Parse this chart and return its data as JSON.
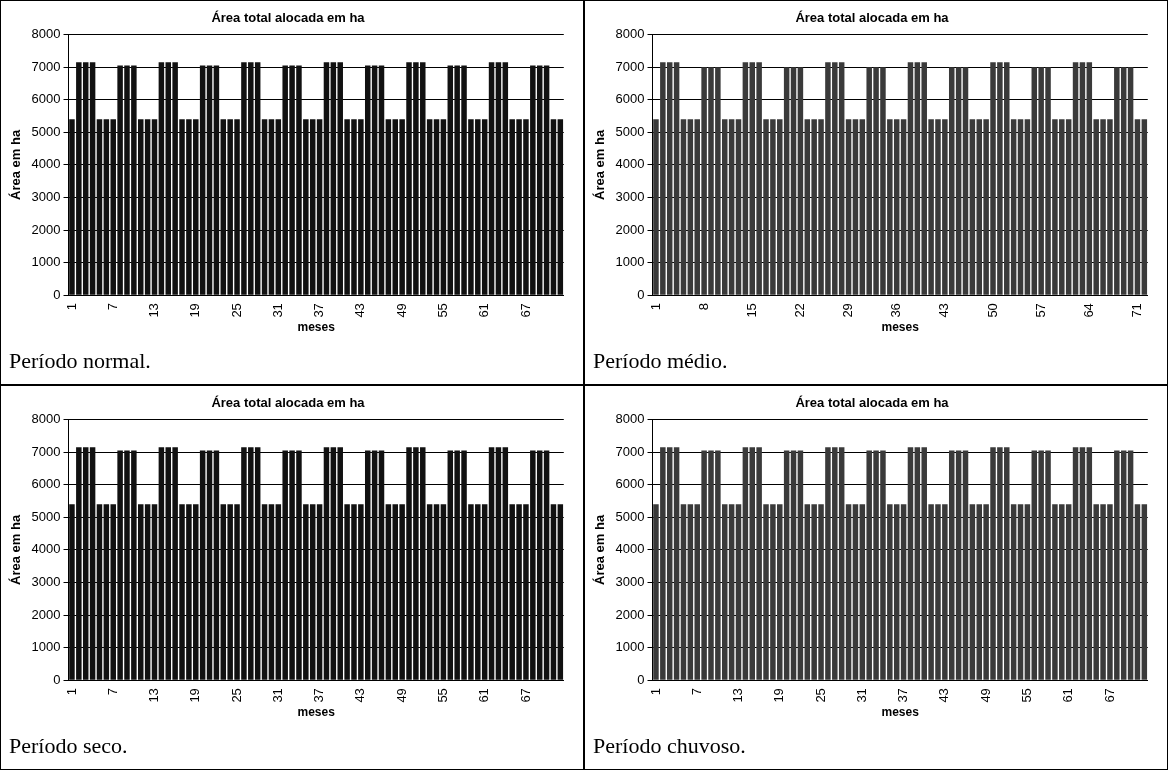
{
  "chart_data": [
    {
      "type": "bar",
      "title": "Área total alocada em ha",
      "xlabel": "meses",
      "ylabel": "Área em ha",
      "categories": [
        "1",
        null,
        null,
        null,
        null,
        null,
        "7",
        null,
        null,
        null,
        null,
        null,
        "13",
        null,
        null,
        null,
        null,
        null,
        "19",
        null,
        null,
        null,
        null,
        null,
        "25",
        null,
        null,
        null,
        null,
        null,
        "31",
        null,
        null,
        null,
        null,
        null,
        "37",
        null,
        null,
        null,
        null,
        null,
        "43",
        null,
        null,
        null,
        null,
        null,
        "49",
        null,
        null,
        null,
        null,
        null,
        "55",
        null,
        null,
        null,
        null,
        null,
        "61",
        null,
        null,
        null,
        null,
        null,
        "67",
        null,
        null,
        null,
        null,
        null
      ],
      "values": [
        5400,
        7150,
        7150,
        7150,
        5400,
        5400,
        5400,
        7050,
        7050,
        7050,
        5400,
        5400,
        5400,
        7150,
        7150,
        7150,
        5400,
        5400,
        5400,
        7050,
        7050,
        7050,
        5400,
        5400,
        5400,
        7150,
        7150,
        7150,
        5400,
        5400,
        5400,
        7050,
        7050,
        7050,
        5400,
        5400,
        5400,
        7150,
        7150,
        7150,
        5400,
        5400,
        5400,
        7050,
        7050,
        7050,
        5400,
        5400,
        5400,
        7150,
        7150,
        7150,
        5400,
        5400,
        5400,
        7050,
        7050,
        7050,
        5400,
        5400,
        5400,
        7150,
        7150,
        7150,
        5400,
        5400,
        5400,
        7050,
        7050,
        7050,
        5400,
        5400
      ],
      "color": "#111111",
      "ylim": [
        0,
        8000
      ],
      "yticks": [
        0,
        1000,
        2000,
        3000,
        4000,
        5000,
        6000,
        7000,
        8000
      ],
      "grid": "y",
      "annotations": [
        "Período normal."
      ]
    },
    {
      "type": "bar",
      "title": "Área total alocada em ha",
      "xlabel": "meses",
      "ylabel": "Área em ha",
      "categories": [
        "1",
        null,
        null,
        null,
        null,
        null,
        null,
        "8",
        null,
        null,
        null,
        null,
        null,
        null,
        "15",
        null,
        null,
        null,
        null,
        null,
        null,
        "22",
        null,
        null,
        null,
        null,
        null,
        null,
        "29",
        null,
        null,
        null,
        null,
        null,
        null,
        "36",
        null,
        null,
        null,
        null,
        null,
        null,
        "43",
        null,
        null,
        null,
        null,
        null,
        null,
        "50",
        null,
        null,
        null,
        null,
        null,
        null,
        "57",
        null,
        null,
        null,
        null,
        null,
        null,
        "64",
        null,
        null,
        null,
        null,
        null,
        null,
        "71",
        null
      ],
      "values": [
        5400,
        7150,
        7150,
        7150,
        5400,
        5400,
        5400,
        7000,
        7000,
        7000,
        5400,
        5400,
        5400,
        7150,
        7150,
        7150,
        5400,
        5400,
        5400,
        7000,
        7000,
        7000,
        5400,
        5400,
        5400,
        7150,
        7150,
        7150,
        5400,
        5400,
        5400,
        7000,
        7000,
        7000,
        5400,
        5400,
        5400,
        7150,
        7150,
        7150,
        5400,
        5400,
        5400,
        7000,
        7000,
        7000,
        5400,
        5400,
        5400,
        7150,
        7150,
        7150,
        5400,
        5400,
        5400,
        7000,
        7000,
        7000,
        5400,
        5400,
        5400,
        7150,
        7150,
        7150,
        5400,
        5400,
        5400,
        7000,
        7000,
        7000,
        5400,
        5400
      ],
      "color": "#3a3a3a",
      "ylim": [
        0,
        8000
      ],
      "yticks": [
        0,
        1000,
        2000,
        3000,
        4000,
        5000,
        6000,
        7000,
        8000
      ],
      "grid": "y",
      "annotations": [
        "Período médio."
      ]
    },
    {
      "type": "bar",
      "title": "Área total alocada em ha",
      "xlabel": "meses",
      "ylabel": "Área em ha",
      "categories": [
        "1",
        null,
        null,
        null,
        null,
        null,
        "7",
        null,
        null,
        null,
        null,
        null,
        "13",
        null,
        null,
        null,
        null,
        null,
        "19",
        null,
        null,
        null,
        null,
        null,
        "25",
        null,
        null,
        null,
        null,
        null,
        "31",
        null,
        null,
        null,
        null,
        null,
        "37",
        null,
        null,
        null,
        null,
        null,
        "43",
        null,
        null,
        null,
        null,
        null,
        "49",
        null,
        null,
        null,
        null,
        null,
        "55",
        null,
        null,
        null,
        null,
        null,
        "61",
        null,
        null,
        null,
        null,
        null,
        "67",
        null,
        null,
        null,
        null,
        null
      ],
      "values": [
        5400,
        7150,
        7150,
        7150,
        5400,
        5400,
        5400,
        7050,
        7050,
        7050,
        5400,
        5400,
        5400,
        7150,
        7150,
        7150,
        5400,
        5400,
        5400,
        7050,
        7050,
        7050,
        5400,
        5400,
        5400,
        7150,
        7150,
        7150,
        5400,
        5400,
        5400,
        7050,
        7050,
        7050,
        5400,
        5400,
        5400,
        7150,
        7150,
        7150,
        5400,
        5400,
        5400,
        7050,
        7050,
        7050,
        5400,
        5400,
        5400,
        7150,
        7150,
        7150,
        5400,
        5400,
        5400,
        7050,
        7050,
        7050,
        5400,
        5400,
        5400,
        7150,
        7150,
        7150,
        5400,
        5400,
        5400,
        7050,
        7050,
        7050,
        5400,
        5400
      ],
      "color": "#111111",
      "ylim": [
        0,
        8000
      ],
      "yticks": [
        0,
        1000,
        2000,
        3000,
        4000,
        5000,
        6000,
        7000,
        8000
      ],
      "grid": "y",
      "annotations": [
        "Período seco."
      ]
    },
    {
      "type": "bar",
      "title": "Área total alocada em ha",
      "xlabel": "meses",
      "ylabel": "Área em ha",
      "categories": [
        "1",
        null,
        null,
        null,
        null,
        null,
        "7",
        null,
        null,
        null,
        null,
        null,
        "13",
        null,
        null,
        null,
        null,
        null,
        "19",
        null,
        null,
        null,
        null,
        null,
        "25",
        null,
        null,
        null,
        null,
        null,
        "31",
        null,
        null,
        null,
        null,
        null,
        "37",
        null,
        null,
        null,
        null,
        null,
        "43",
        null,
        null,
        null,
        null,
        null,
        "49",
        null,
        null,
        null,
        null,
        null,
        "55",
        null,
        null,
        null,
        null,
        null,
        "61",
        null,
        null,
        null,
        null,
        null,
        "67",
        null,
        null,
        null,
        null,
        null
      ],
      "values": [
        5400,
        7150,
        7150,
        7150,
        5400,
        5400,
        5400,
        7050,
        7050,
        7050,
        5400,
        5400,
        5400,
        7150,
        7150,
        7150,
        5400,
        5400,
        5400,
        7050,
        7050,
        7050,
        5400,
        5400,
        5400,
        7150,
        7150,
        7150,
        5400,
        5400,
        5400,
        7050,
        7050,
        7050,
        5400,
        5400,
        5400,
        7150,
        7150,
        7150,
        5400,
        5400,
        5400,
        7050,
        7050,
        7050,
        5400,
        5400,
        5400,
        7150,
        7150,
        7150,
        5400,
        5400,
        5400,
        7050,
        7050,
        7050,
        5400,
        5400,
        5400,
        7150,
        7150,
        7150,
        5400,
        5400,
        5400,
        7050,
        7050,
        7050,
        5400,
        5400
      ],
      "color": "#3a3a3a",
      "ylim": [
        0,
        8000
      ],
      "yticks": [
        0,
        1000,
        2000,
        3000,
        4000,
        5000,
        6000,
        7000,
        8000
      ],
      "grid": "y",
      "annotations": [
        "Período chuvoso."
      ]
    }
  ]
}
